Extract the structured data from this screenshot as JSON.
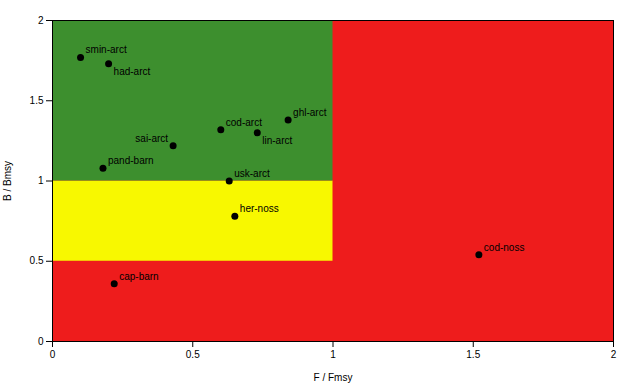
{
  "chart_data": {
    "type": "scatter",
    "xlabel": "F / Fmsy",
    "ylabel": "B / Bmsy",
    "color": "#000000",
    "points": [
      {
        "label": "smin-arct",
        "x": 0.1,
        "y": 1.77
      },
      {
        "label": "had-arct",
        "x": 0.2,
        "y": 1.73
      },
      {
        "label": "pand-barn",
        "x": 0.18,
        "y": 1.08
      },
      {
        "label": "sai-arct",
        "x": 0.43,
        "y": 1.22
      },
      {
        "label": "cod-arct",
        "x": 0.6,
        "y": 1.32
      },
      {
        "label": "lin-arct",
        "x": 0.73,
        "y": 1.3
      },
      {
        "label": "ghl-arct",
        "x": 0.84,
        "y": 1.38
      },
      {
        "label": "usk-arct",
        "x": 0.63,
        "y": 1.0
      },
      {
        "label": "her-noss",
        "x": 0.65,
        "y": 0.78
      },
      {
        "label": "cod-noss",
        "x": 1.52,
        "y": 0.54
      },
      {
        "label": "cap-barn",
        "x": 0.22,
        "y": 0.36
      }
    ],
    "regions": [
      {
        "x1": 0,
        "x2": 2,
        "y1": 0,
        "y2": 2,
        "color": "#ee1c1c"
      },
      {
        "x1": 0,
        "x2": 1.0,
        "y1": 0.5,
        "y2": 1.0,
        "color": "#f8f800"
      },
      {
        "x1": 0,
        "x2": 1.0,
        "y1": 1.0,
        "y2": 2.0,
        "color": "#3d8f2e"
      }
    ],
    "xlim": [
      0,
      2
    ],
    "ylim": [
      0,
      2
    ],
    "xticks": [
      0,
      0.5,
      1,
      1.5,
      2
    ],
    "yticks": [
      0,
      0.5,
      1,
      1.5,
      2
    ],
    "grid": false
  }
}
